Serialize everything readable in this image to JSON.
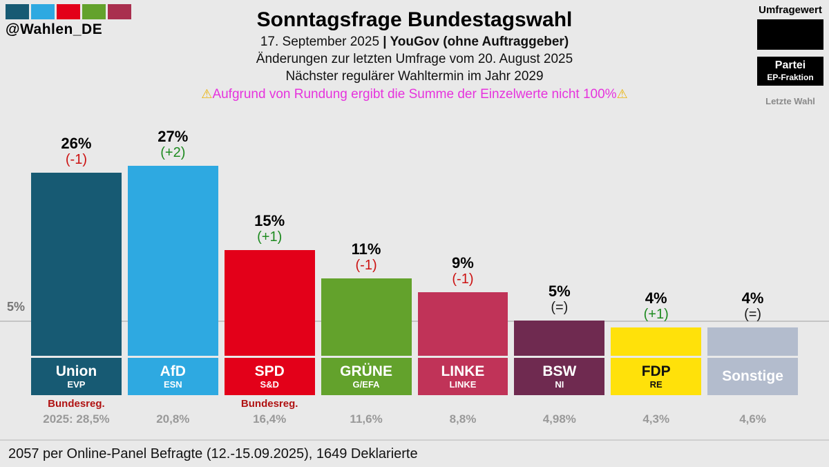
{
  "header": {
    "handle": "@Wahlen_DE",
    "logo_colors": [
      "#175a73",
      "#2ea9e1",
      "#e30019",
      "#63a22c",
      "#a92f4e"
    ],
    "title": "Sonntagsfrage Bundestagswahl",
    "date": "17. September 2025",
    "source": "| YouGov (ohne Auftraggeber)",
    "changes_line": "Änderungen zur letzten Umfrage vom 20. August 2025",
    "next_election_line": "Nächster regulärer Wahltermin im Jahr 2029",
    "warning_icon": "⚠",
    "warning_text": "Aufgrund von Rundung ergibt die Summe der Einzelwerte nicht 100%"
  },
  "legend": {
    "survey_value_label": "Umfragewert",
    "party_label": "Partei",
    "fraction_label": "EP-Fraktion",
    "last_election_label": "Letzte Wahl"
  },
  "chart": {
    "threshold_label": "5%"
  },
  "footer": {
    "text": "2057 per Online-Panel Befragte (12.-15.09.2025), 1649 Deklarierte"
  },
  "chart_data": {
    "type": "bar",
    "title": "Sonntagsfrage Bundestagswahl",
    "categories": [
      "Union",
      "AfD",
      "SPD",
      "GRÜNE",
      "LINKE",
      "BSW",
      "FDP",
      "Sonstige"
    ],
    "values": [
      26,
      27,
      15,
      11,
      9,
      5,
      4,
      4
    ],
    "changes": [
      -1,
      2,
      1,
      -1,
      -1,
      0,
      1,
      0
    ],
    "last_results": [
      "2025: 28,5%",
      "20,8%",
      "16,4%",
      "11,6%",
      "8,8%",
      "4,98%",
      "4,3%",
      "4,6%"
    ],
    "ylim": [
      0,
      30
    ],
    "threshold_percent": 5,
    "parties": [
      {
        "name": "Union",
        "fraction": "EVP",
        "value": 26,
        "value_label": "26%",
        "change": "(-1)",
        "change_color": "#cc1111",
        "color": "#175a73",
        "label_text": "#ffffff",
        "note": "Bundesreg.",
        "last": "2025: 28,5%"
      },
      {
        "name": "AfD",
        "fraction": "ESN",
        "value": 27,
        "value_label": "27%",
        "change": "(+2)",
        "change_color": "#1d8a1f",
        "color": "#2ea9e1",
        "label_text": "#ffffff",
        "note": "",
        "last": "20,8%"
      },
      {
        "name": "SPD",
        "fraction": "S&D",
        "value": 15,
        "value_label": "15%",
        "change": "(+1)",
        "change_color": "#1d8a1f",
        "color": "#e30019",
        "label_text": "#ffffff",
        "note": "Bundesreg.",
        "last": "16,4%"
      },
      {
        "name": "GRÜNE",
        "fraction": "G/EFA",
        "value": 11,
        "value_label": "11%",
        "change": "(-1)",
        "change_color": "#cc1111",
        "color": "#63a22c",
        "label_text": "#ffffff",
        "note": "",
        "last": "11,6%"
      },
      {
        "name": "LINKE",
        "fraction": "LINKE",
        "value": 9,
        "value_label": "9%",
        "change": "(-1)",
        "change_color": "#cc1111",
        "color": "#c03358",
        "label_text": "#ffffff",
        "note": "",
        "last": "8,8%"
      },
      {
        "name": "BSW",
        "fraction": "NI",
        "value": 5,
        "value_label": "5%",
        "change": "(=)",
        "change_color": "#1a1a1a",
        "color": "#6f2a50",
        "label_text": "#ffffff",
        "note": "",
        "last": "4,98%"
      },
      {
        "name": "FDP",
        "fraction": "RE",
        "value": 4,
        "value_label": "4%",
        "change": "(+1)",
        "change_color": "#1d8a1f",
        "color": "#ffe10a",
        "label_text": "#111111",
        "note": "",
        "last": "4,3%"
      },
      {
        "name": "Sonstige",
        "fraction": "",
        "value": 4,
        "value_label": "4%",
        "change": "(=)",
        "change_color": "#1a1a1a",
        "color": "#b3bccd",
        "label_text": "#ffffff",
        "note": "",
        "last": "4,6%"
      }
    ]
  }
}
